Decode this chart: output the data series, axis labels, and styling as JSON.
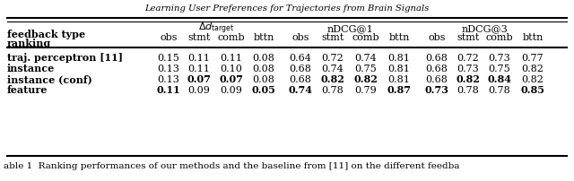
{
  "title_top": "Learning User Preferences for Trajectories from Brain Signals",
  "caption": "able 1  Ranking performances of our methods and the baseline from [11] on the different feedba",
  "header2": [
    "obs",
    "stmt",
    "comb",
    "bttn",
    "obs",
    "stmt",
    "comb",
    "bttn",
    "obs",
    "stmt",
    "comb",
    "bttn"
  ],
  "rows": [
    {
      "label": "traj. perceptron [11]",
      "values": [
        "0.15",
        "0.11",
        "0.11",
        "0.08",
        "0.64",
        "0.72",
        "0.74",
        "0.81",
        "0.68",
        "0.72",
        "0.73",
        "0.77"
      ],
      "bold": [
        false,
        false,
        false,
        false,
        false,
        false,
        false,
        false,
        false,
        false,
        false,
        false
      ]
    },
    {
      "label": "instance",
      "values": [
        "0.13",
        "0.11",
        "0.10",
        "0.08",
        "0.68",
        "0.74",
        "0.75",
        "0.81",
        "0.68",
        "0.73",
        "0.75",
        "0.82"
      ],
      "bold": [
        false,
        false,
        false,
        false,
        false,
        false,
        false,
        false,
        false,
        false,
        false,
        false
      ]
    },
    {
      "label": "instance (conf)",
      "values": [
        "0.13",
        "0.07",
        "0.07",
        "0.08",
        "0.68",
        "0.82",
        "0.82",
        "0.81",
        "0.68",
        "0.82",
        "0.84",
        "0.82"
      ],
      "bold": [
        false,
        true,
        true,
        false,
        false,
        true,
        true,
        false,
        false,
        true,
        true,
        false
      ]
    },
    {
      "label": "feature",
      "values": [
        "0.11",
        "0.09",
        "0.09",
        "0.05",
        "0.74",
        "0.78",
        "0.79",
        "0.87",
        "0.73",
        "0.78",
        "0.78",
        "0.85"
      ],
      "bold": [
        true,
        false,
        false,
        true,
        true,
        false,
        false,
        true,
        true,
        false,
        false,
        true
      ]
    }
  ],
  "bg_color": "#ffffff",
  "text_color": "#000000"
}
